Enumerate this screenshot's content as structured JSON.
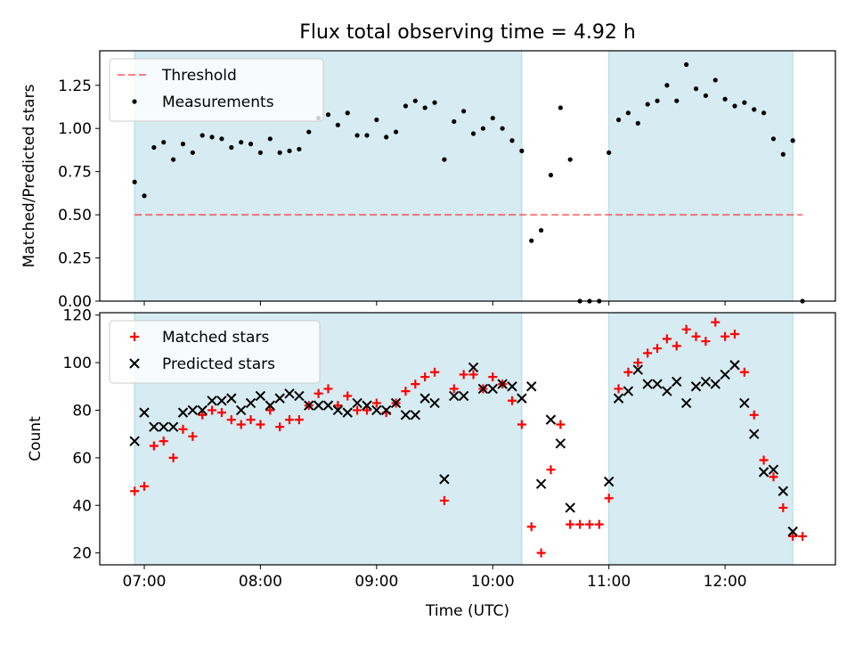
{
  "title": "Flux total observing time = 4.92 h",
  "xlabel": "Time (UTC)",
  "colors": {
    "band": "#add8e6",
    "threshold": "#ff0000",
    "matched": "#ff0000",
    "predicted": "#000000",
    "measurements": "#000000"
  },
  "chart_data": [
    {
      "type": "scatter",
      "ylabel": "Matched/Predicted stars",
      "xlim": [
        "06:37",
        "12:57"
      ],
      "ylim": [
        0,
        1.45
      ],
      "yticks": [
        "0.00",
        "0.25",
        "0.50",
        "0.75",
        "1.00",
        "1.25"
      ],
      "xticks": [
        "07:00",
        "08:00",
        "09:00",
        "10:00",
        "11:00",
        "12:00"
      ],
      "shaded_intervals": [
        [
          "06:55",
          "10:15"
        ],
        [
          "11:00",
          "12:35"
        ]
      ],
      "legend": {
        "position": "top-left",
        "entries": [
          "Threshold",
          "Measurements"
        ]
      },
      "threshold": {
        "name": "Threshold",
        "y": 0.5,
        "x": [
          "06:55",
          "12:40"
        ]
      },
      "series": [
        {
          "name": "Measurements",
          "marker": "dot",
          "points": [
            [
              "06:55",
              0.69
            ],
            [
              "07:00",
              0.61
            ],
            [
              "07:05",
              0.89
            ],
            [
              "07:10",
              0.92
            ],
            [
              "07:15",
              0.82
            ],
            [
              "07:20",
              0.91
            ],
            [
              "07:25",
              0.86
            ],
            [
              "07:30",
              0.96
            ],
            [
              "07:35",
              0.95
            ],
            [
              "07:40",
              0.94
            ],
            [
              "07:45",
              0.89
            ],
            [
              "07:50",
              0.92
            ],
            [
              "07:55",
              0.91
            ],
            [
              "08:00",
              0.86
            ],
            [
              "08:05",
              0.94
            ],
            [
              "08:10",
              0.86
            ],
            [
              "08:15",
              0.87
            ],
            [
              "08:20",
              0.88
            ],
            [
              "08:25",
              0.98
            ],
            [
              "08:30",
              1.06
            ],
            [
              "08:35",
              1.08
            ],
            [
              "08:40",
              1.02
            ],
            [
              "08:45",
              1.09
            ],
            [
              "08:50",
              0.96
            ],
            [
              "08:55",
              0.96
            ],
            [
              "09:00",
              1.05
            ],
            [
              "09:05",
              0.95
            ],
            [
              "09:10",
              0.98
            ],
            [
              "09:15",
              1.13
            ],
            [
              "09:20",
              1.16
            ],
            [
              "09:25",
              1.12
            ],
            [
              "09:30",
              1.15
            ],
            [
              "09:35",
              0.82
            ],
            [
              "09:40",
              1.04
            ],
            [
              "09:45",
              1.1
            ],
            [
              "09:50",
              0.97
            ],
            [
              "09:55",
              1.0
            ],
            [
              "10:00",
              1.06
            ],
            [
              "10:05",
              1.0
            ],
            [
              "10:10",
              0.93
            ],
            [
              "10:15",
              0.87
            ],
            [
              "10:20",
              0.35
            ],
            [
              "10:25",
              0.41
            ],
            [
              "10:30",
              0.73
            ],
            [
              "10:35",
              1.12
            ],
            [
              "10:40",
              0.82
            ],
            [
              "10:45",
              0.0
            ],
            [
              "10:50",
              0.0
            ],
            [
              "10:55",
              0.0
            ],
            [
              "11:00",
              0.86
            ],
            [
              "11:05",
              1.05
            ],
            [
              "11:10",
              1.09
            ],
            [
              "11:15",
              1.03
            ],
            [
              "11:20",
              1.14
            ],
            [
              "11:25",
              1.16
            ],
            [
              "11:30",
              1.25
            ],
            [
              "11:35",
              1.16
            ],
            [
              "11:40",
              1.37
            ],
            [
              "11:45",
              1.23
            ],
            [
              "11:50",
              1.19
            ],
            [
              "11:55",
              1.28
            ],
            [
              "12:00",
              1.17
            ],
            [
              "12:05",
              1.13
            ],
            [
              "12:10",
              1.15
            ],
            [
              "12:15",
              1.11
            ],
            [
              "12:20",
              1.09
            ],
            [
              "12:25",
              0.94
            ],
            [
              "12:30",
              0.85
            ],
            [
              "12:35",
              0.93
            ],
            [
              "12:40",
              0.0
            ]
          ]
        }
      ]
    },
    {
      "type": "scatter",
      "ylabel": "Count",
      "xlim": [
        "06:37",
        "12:57"
      ],
      "ylim": [
        15,
        121
      ],
      "yticks": [
        "20",
        "40",
        "60",
        "80",
        "100",
        "120"
      ],
      "xticks": [
        "07:00",
        "08:00",
        "09:00",
        "10:00",
        "11:00",
        "12:00"
      ],
      "shaded_intervals": [
        [
          "06:55",
          "10:15"
        ],
        [
          "11:00",
          "12:35"
        ]
      ],
      "legend": {
        "position": "top-left",
        "entries": [
          "Matched stars",
          "Predicted stars"
        ]
      },
      "series": [
        {
          "name": "Matched stars",
          "marker": "plus",
          "points": [
            [
              "06:55",
              46
            ],
            [
              "07:00",
              48
            ],
            [
              "07:05",
              65
            ],
            [
              "07:10",
              67
            ],
            [
              "07:15",
              60
            ],
            [
              "07:20",
              72
            ],
            [
              "07:25",
              69
            ],
            [
              "07:30",
              78
            ],
            [
              "07:35",
              80
            ],
            [
              "07:40",
              79
            ],
            [
              "07:45",
              76
            ],
            [
              "07:50",
              74
            ],
            [
              "07:55",
              76
            ],
            [
              "08:00",
              74
            ],
            [
              "08:05",
              80
            ],
            [
              "08:10",
              73
            ],
            [
              "08:15",
              76
            ],
            [
              "08:20",
              76
            ],
            [
              "08:25",
              82
            ],
            [
              "08:30",
              87
            ],
            [
              "08:35",
              89
            ],
            [
              "08:40",
              82
            ],
            [
              "08:45",
              86
            ],
            [
              "08:50",
              80
            ],
            [
              "08:55",
              80
            ],
            [
              "09:00",
              83
            ],
            [
              "09:05",
              79
            ],
            [
              "09:10",
              83
            ],
            [
              "09:15",
              88
            ],
            [
              "09:20",
              91
            ],
            [
              "09:25",
              94
            ],
            [
              "09:30",
              96
            ],
            [
              "09:35",
              42
            ],
            [
              "09:40",
              89
            ],
            [
              "09:45",
              95
            ],
            [
              "09:50",
              95
            ],
            [
              "09:55",
              89
            ],
            [
              "10:00",
              94
            ],
            [
              "10:05",
              91
            ],
            [
              "10:10",
              84
            ],
            [
              "10:15",
              74
            ],
            [
              "10:20",
              31
            ],
            [
              "10:25",
              20
            ],
            [
              "10:30",
              55
            ],
            [
              "10:35",
              74
            ],
            [
              "10:40",
              32
            ],
            [
              "10:45",
              32
            ],
            [
              "10:50",
              32
            ],
            [
              "10:55",
              32
            ],
            [
              "11:00",
              43
            ],
            [
              "11:05",
              89
            ],
            [
              "11:10",
              96
            ],
            [
              "11:15",
              100
            ],
            [
              "11:20",
              104
            ],
            [
              "11:25",
              106
            ],
            [
              "11:30",
              110
            ],
            [
              "11:35",
              107
            ],
            [
              "11:40",
              114
            ],
            [
              "11:45",
              111
            ],
            [
              "11:50",
              109
            ],
            [
              "11:55",
              117
            ],
            [
              "12:00",
              111
            ],
            [
              "12:05",
              112
            ],
            [
              "12:10",
              96
            ],
            [
              "12:15",
              78
            ],
            [
              "12:20",
              59
            ],
            [
              "12:25",
              52
            ],
            [
              "12:30",
              39
            ],
            [
              "12:35",
              27
            ],
            [
              "12:40",
              27
            ]
          ]
        },
        {
          "name": "Predicted stars",
          "marker": "x",
          "points": [
            [
              "06:55",
              67
            ],
            [
              "07:00",
              79
            ],
            [
              "07:05",
              73
            ],
            [
              "07:10",
              73
            ],
            [
              "07:15",
              73
            ],
            [
              "07:20",
              79
            ],
            [
              "07:25",
              80
            ],
            [
              "07:30",
              80
            ],
            [
              "07:35",
              84
            ],
            [
              "07:40",
              84
            ],
            [
              "07:45",
              85
            ],
            [
              "07:50",
              80
            ],
            [
              "07:55",
              83
            ],
            [
              "08:00",
              86
            ],
            [
              "08:05",
              82
            ],
            [
              "08:10",
              85
            ],
            [
              "08:15",
              87
            ],
            [
              "08:20",
              86
            ],
            [
              "08:25",
              82
            ],
            [
              "08:30",
              82
            ],
            [
              "08:35",
              82
            ],
            [
              "08:40",
              80
            ],
            [
              "08:45",
              79
            ],
            [
              "08:50",
              83
            ],
            [
              "08:55",
              82
            ],
            [
              "09:00",
              80
            ],
            [
              "09:05",
              80
            ],
            [
              "09:10",
              83
            ],
            [
              "09:15",
              78
            ],
            [
              "09:20",
              78
            ],
            [
              "09:25",
              85
            ],
            [
              "09:30",
              83
            ],
            [
              "09:35",
              51
            ],
            [
              "09:40",
              86
            ],
            [
              "09:45",
              86
            ],
            [
              "09:50",
              98
            ],
            [
              "09:55",
              89
            ],
            [
              "10:00",
              89
            ],
            [
              "10:05",
              91
            ],
            [
              "10:10",
              90
            ],
            [
              "10:15",
              85
            ],
            [
              "10:20",
              90
            ],
            [
              "10:25",
              49
            ],
            [
              "10:30",
              76
            ],
            [
              "10:35",
              66
            ],
            [
              "10:40",
              39
            ],
            [
              "11:00",
              50
            ],
            [
              "11:05",
              85
            ],
            [
              "11:10",
              88
            ],
            [
              "11:15",
              97
            ],
            [
              "11:20",
              91
            ],
            [
              "11:25",
              91
            ],
            [
              "11:30",
              88
            ],
            [
              "11:35",
              92
            ],
            [
              "11:40",
              83
            ],
            [
              "11:45",
              90
            ],
            [
              "11:50",
              92
            ],
            [
              "11:55",
              91
            ],
            [
              "12:00",
              95
            ],
            [
              "12:05",
              99
            ],
            [
              "12:10",
              83
            ],
            [
              "12:15",
              70
            ],
            [
              "12:20",
              54
            ],
            [
              "12:25",
              55
            ],
            [
              "12:30",
              46
            ],
            [
              "12:35",
              29
            ]
          ]
        }
      ]
    }
  ]
}
